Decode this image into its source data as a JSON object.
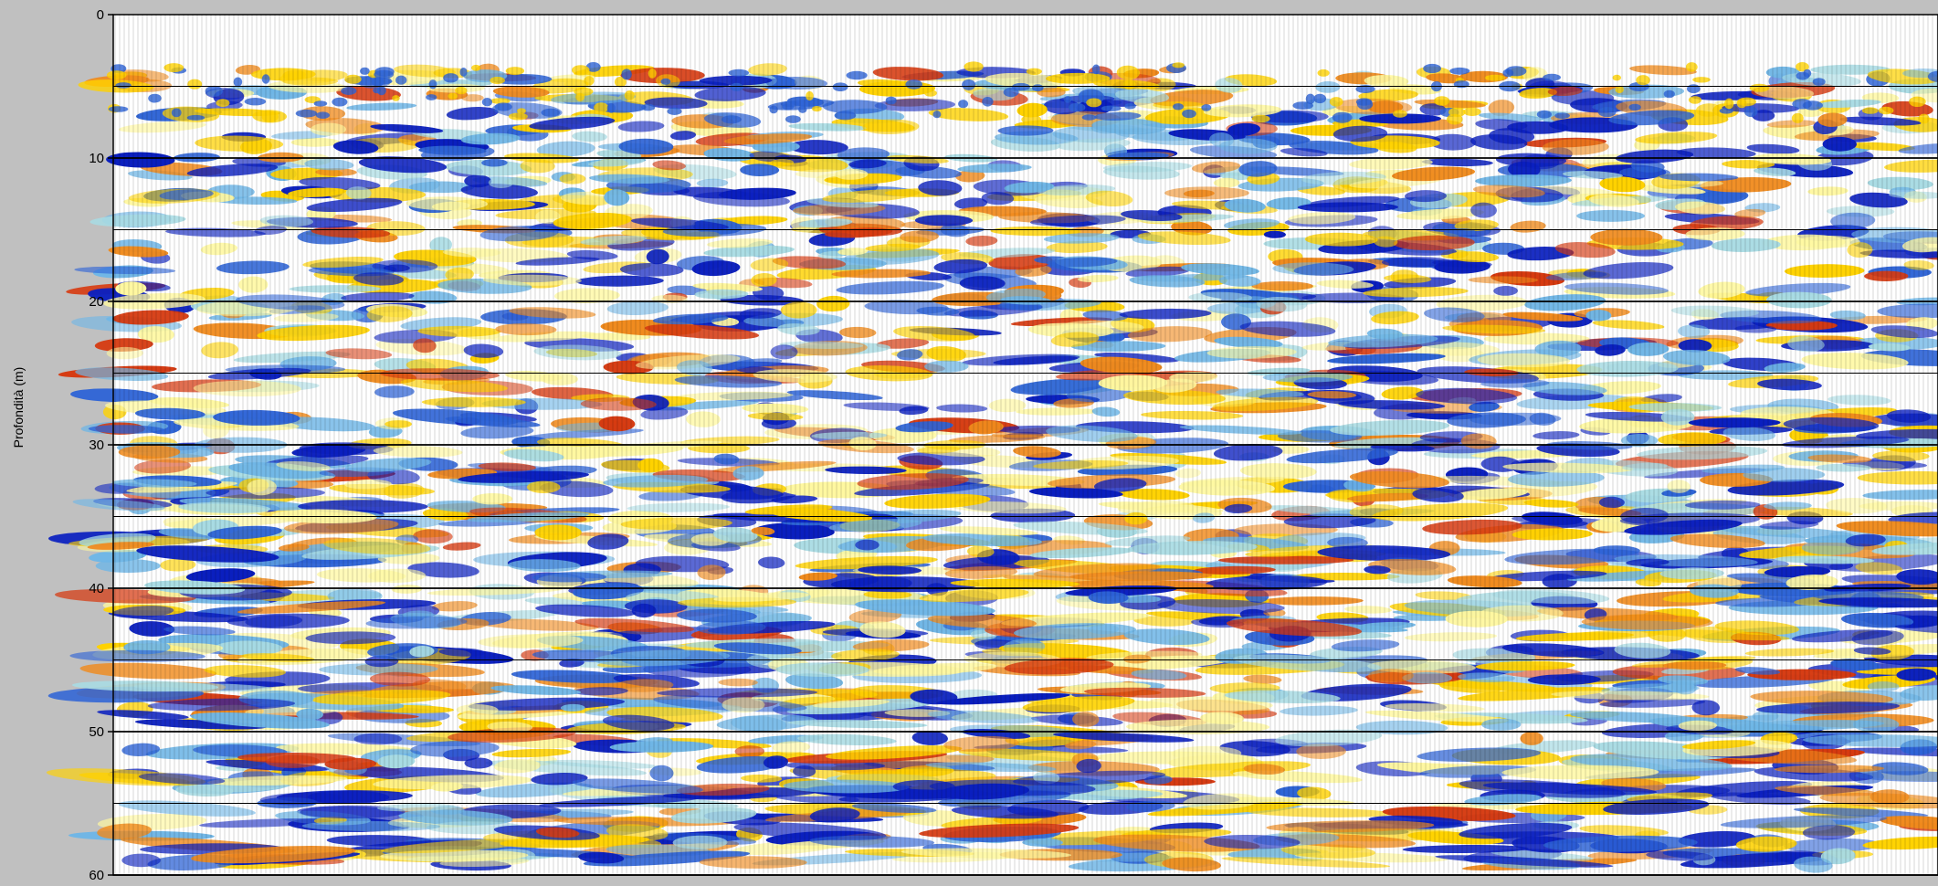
{
  "chart_data": {
    "type": "heatmap",
    "title": "",
    "xlabel": "",
    "ylabel": "Profondità (m)",
    "ylim": [
      0,
      60
    ],
    "y_inverted": true,
    "y_ticks": [
      "0",
      "10",
      "20",
      "30",
      "40",
      "50",
      "60"
    ],
    "y_tick_values": [
      0,
      10,
      20,
      30,
      40,
      50,
      60
    ],
    "y_gridlines": [
      5,
      10,
      15,
      20,
      25,
      30,
      35,
      40,
      45,
      50,
      55,
      60
    ],
    "grid": true,
    "colormap": [
      "#0a1fbf",
      "#2d63d6",
      "#6fb6e6",
      "#a8dbe3",
      "#ffffff",
      "#fff8a0",
      "#ffd200",
      "#f08a1c",
      "#d63a10"
    ],
    "trace_line_color": "#000000",
    "background_color": "#c0c0c0"
  }
}
